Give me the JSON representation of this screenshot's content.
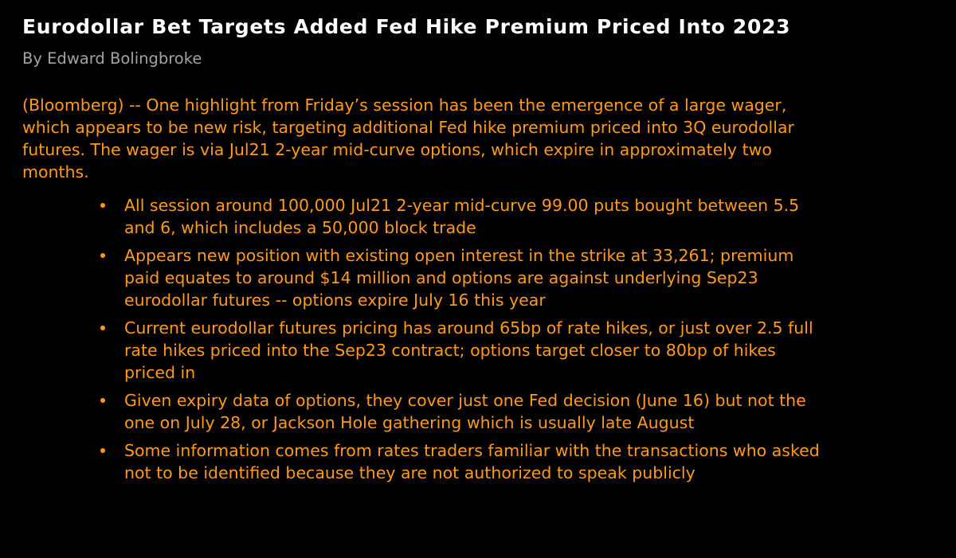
{
  "article": {
    "headline": "Eurodollar Bet Targets Added Fed Hike Premium Priced Into 2023",
    "byline": "By Edward Bolingbroke",
    "lead": "(Bloomberg) -- One highlight from Friday’s session has been the emergence of a large wager, which appears to be new risk, targeting additional Fed hike premium priced into 3Q eurodollar futures. The wager is via Jul21 2-year mid-curve options, which expire in approximately two months.",
    "bullets": [
      "All session around 100,000 Jul21 2-year mid-curve 99.00 puts bought between 5.5 and 6, which includes a 50,000 block trade",
      "Appears new position with existing open interest in the strike at 33,261; premium paid equates to around $14 million and options are against underlying Sep23 eurodollar futures -- options expire July 16 this year",
      "Current eurodollar futures pricing has around 65bp of rate hikes, or just over 2.5 full rate hikes priced into the Sep23 contract; options target closer to 80bp of hikes priced in",
      "Given expiry data of options, they cover just one Fed decision (June 16) but not the one on July 28, or Jackson Hole gathering which is usually late August",
      "Some information comes from rates traders familiar with the transactions who asked not to be identified because they are not authorized to speak publicly"
    ]
  },
  "colors": {
    "background": "#000000",
    "headline": "#ffffff",
    "byline": "#a3a3a3",
    "body_text": "#ff9a1f"
  }
}
